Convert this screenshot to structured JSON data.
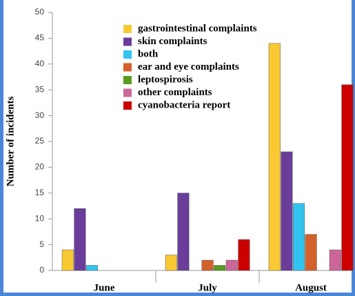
{
  "chart_data": {
    "type": "bar",
    "y_label": "Number of incidents",
    "categories": [
      "June",
      "July",
      "August"
    ],
    "series": [
      {
        "name": "gastrointestinal complaints",
        "color": "#f9c933",
        "values": [
          4,
          3,
          44
        ]
      },
      {
        "name": "skin complaints",
        "color": "#6a3d9a",
        "values": [
          12,
          15,
          23
        ]
      },
      {
        "name": "both",
        "color": "#33c3f0",
        "values": [
          1,
          0,
          13
        ]
      },
      {
        "name": "ear and eye complaints",
        "color": "#d2622a",
        "values": [
          0,
          2,
          7
        ]
      },
      {
        "name": "leptospirosis",
        "color": "#5a9a1e",
        "values": [
          0,
          1,
          0
        ]
      },
      {
        "name": "other complaints",
        "color": "#cc6699",
        "values": [
          0,
          2,
          4
        ]
      },
      {
        "name": "cyanobacteria report",
        "color": "#cc0000",
        "values": [
          0,
          6,
          36
        ]
      }
    ],
    "ylim": [
      0,
      50
    ],
    "yticks": [
      0,
      5,
      10,
      15,
      20,
      25,
      30,
      35,
      40,
      45,
      50
    ]
  }
}
